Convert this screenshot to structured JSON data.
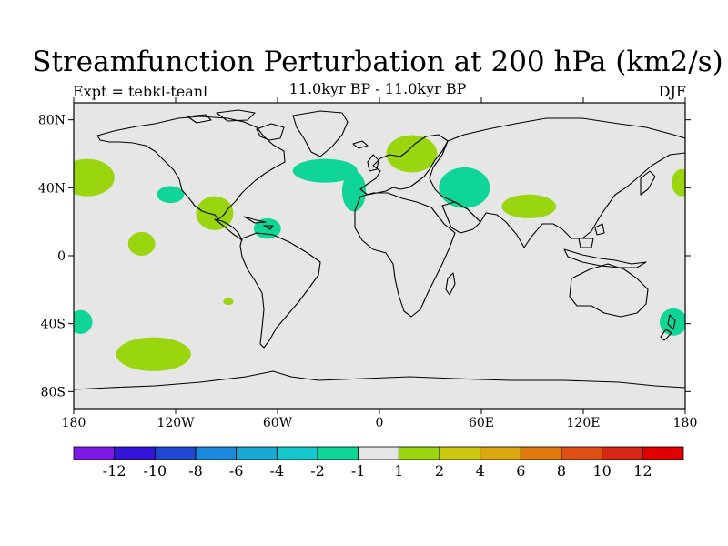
{
  "title": "Streamfunction Perturbation at 200 hPa (km2/s)",
  "left_subtitle": "Expt = tebkl-teanl",
  "center_subtitle": "11.0kyr BP - 11.0kyr BP",
  "right_subtitle": "DJF",
  "map": {
    "projection": "cylindrical equidistant",
    "lon_range": [
      -180,
      180
    ],
    "lat_range": [
      -90,
      90
    ],
    "background_color": "#e6e6e6",
    "coastline_color": "#000000",
    "lat_ticks": [
      {
        "value": 80,
        "label": "80N"
      },
      {
        "value": 40,
        "label": "40N"
      },
      {
        "value": 0,
        "label": "0"
      },
      {
        "value": -40,
        "label": "40S"
      },
      {
        "value": -80,
        "label": "80S"
      }
    ],
    "lon_ticks": [
      {
        "value": -180,
        "label": "180"
      },
      {
        "value": -120,
        "label": "120W"
      },
      {
        "value": -60,
        "label": "60W"
      },
      {
        "value": 0,
        "label": "0"
      },
      {
        "value": 60,
        "label": "60E"
      },
      {
        "value": 120,
        "label": "120E"
      },
      {
        "value": 180,
        "label": "180"
      }
    ],
    "anomalies": [
      {
        "name": "north-pacific-west",
        "lon": -172,
        "lat": 46,
        "rlon": 16,
        "rlat": 11,
        "sign": "positive"
      },
      {
        "name": "central-pacific-north",
        "lon": -123,
        "lat": 36,
        "rlon": 8,
        "rlat": 5,
        "sign": "negative"
      },
      {
        "name": "mexico",
        "lon": -97,
        "lat": 25,
        "rlon": 11,
        "rlat": 10,
        "sign": "positive"
      },
      {
        "name": "tropical-pacific",
        "lon": -140,
        "lat": 7,
        "rlon": 8,
        "rlat": 7,
        "sign": "positive"
      },
      {
        "name": "caribbean",
        "lon": -66,
        "lat": 16,
        "rlon": 8,
        "rlat": 6,
        "sign": "negative"
      },
      {
        "name": "north-atlantic",
        "lon": -32,
        "lat": 50,
        "rlon": 19,
        "rlat": 7,
        "sign": "negative"
      },
      {
        "name": "east-atlantic",
        "lon": -15,
        "lat": 38,
        "rlon": 7,
        "rlat": 12,
        "sign": "negative"
      },
      {
        "name": "scandinavia",
        "lon": 19,
        "lat": 60,
        "rlon": 15,
        "rlat": 11,
        "sign": "positive"
      },
      {
        "name": "caspian-region",
        "lon": 50,
        "lat": 40,
        "rlon": 15,
        "rlat": 12,
        "sign": "negative"
      },
      {
        "name": "tibet",
        "lon": 88,
        "lat": 29,
        "rlon": 16,
        "rlat": 7,
        "sign": "positive"
      },
      {
        "name": "north-pacific-east",
        "lon": 178,
        "lat": 43,
        "rlon": 6,
        "rlat": 8,
        "sign": "positive"
      },
      {
        "name": "south-pacific-west",
        "lon": -176,
        "lat": -39,
        "rlon": 7,
        "rlat": 7,
        "sign": "negative"
      },
      {
        "name": "south-pacific",
        "lon": -133,
        "lat": -58,
        "rlon": 22,
        "rlat": 10,
        "sign": "positive"
      },
      {
        "name": "south-atlantic-small",
        "lon": -89,
        "lat": -27,
        "rlon": 3,
        "rlat": 2,
        "sign": "positive"
      },
      {
        "name": "new-zealand",
        "lon": 173,
        "lat": -39,
        "rlon": 8,
        "rlat": 8,
        "sign": "negative"
      }
    ]
  },
  "colorbar": {
    "colors": [
      "#7d1ae6",
      "#3515d9",
      "#1f48d0",
      "#1a88dc",
      "#17aad5",
      "#15c8cd",
      "#0fd696",
      "#e6e6e6",
      "#99d60f",
      "#ccc80f",
      "#dca80f",
      "#e07a0f",
      "#e05014",
      "#d62814",
      "#e00000"
    ],
    "labels": [
      "-12",
      "-10",
      "-8",
      "-6",
      "-4",
      "-2",
      "-1",
      "1",
      "2",
      "4",
      "6",
      "8",
      "10",
      "12"
    ],
    "negative_fill": "#0fd696",
    "positive_fill": "#99d60f"
  }
}
